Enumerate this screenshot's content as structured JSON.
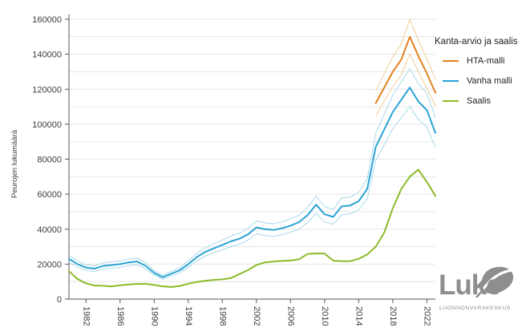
{
  "chart_data": {
    "type": "line",
    "title": "",
    "xlabel": "",
    "ylabel": "Peurojen lukumäärä",
    "ylim": [
      0,
      160000
    ],
    "yticks": [
      0,
      20000,
      40000,
      60000,
      80000,
      100000,
      120000,
      140000,
      160000
    ],
    "gridline_step": 10000,
    "grid": true,
    "legend_title": "Kanta-arvio ja saalis",
    "legend_position": "right",
    "x": [
      1980,
      1981,
      1982,
      1983,
      1984,
      1985,
      1986,
      1987,
      1988,
      1989,
      1990,
      1991,
      1992,
      1993,
      1994,
      1995,
      1996,
      1997,
      1998,
      1999,
      2000,
      2001,
      2002,
      2003,
      2004,
      2005,
      2006,
      2007,
      2008,
      2009,
      2010,
      2011,
      2012,
      2013,
      2014,
      2015,
      2016,
      2017,
      2018,
      2019,
      2020,
      2021,
      2022,
      2023
    ],
    "xticks": [
      1982,
      1986,
      1990,
      1994,
      1998,
      2002,
      2006,
      2010,
      2014,
      2018,
      2022
    ],
    "colors": {
      "grid": "#e6e6e6",
      "axis": "#555555",
      "text": "#3d3d3d"
    },
    "series": [
      {
        "name": "HTA-malli",
        "color": "#e2821e",
        "band_color": "#f3cd96",
        "start_year": 2016,
        "values": [
          112000,
          121000,
          130000,
          137000,
          150000,
          139000,
          129000,
          118000
        ],
        "ci_upper": [
          119300,
          128900,
          138500,
          145900,
          159800,
          148000,
          137400,
          125700
        ],
        "ci_lower": [
          104700,
          113100,
          121600,
          128100,
          140300,
          130000,
          120600,
          110300
        ]
      },
      {
        "name": "Vanha malli",
        "color": "#2ba3d4",
        "band_color": "#a9d9ec",
        "start_year": 1980,
        "values": [
          23000,
          20000,
          18000,
          17400,
          19000,
          19500,
          20000,
          21000,
          21500,
          19000,
          15000,
          12500,
          14500,
          16500,
          20000,
          24000,
          27000,
          29000,
          31000,
          33000,
          34500,
          37000,
          41000,
          40000,
          39500,
          40500,
          42000,
          44000,
          48000,
          54000,
          48500,
          47000,
          53000,
          53500,
          56000,
          63000,
          87000,
          97000,
          107000,
          114000,
          121000,
          113000,
          108000,
          95000
        ],
        "ci_upper": [
          25100,
          21800,
          19600,
          19000,
          20700,
          21300,
          21800,
          22900,
          23400,
          20700,
          16400,
          13600,
          15800,
          18000,
          21800,
          26200,
          29400,
          31600,
          33800,
          36000,
          37600,
          40300,
          44700,
          43600,
          43100,
          44100,
          45800,
          48000,
          52300,
          58900,
          52900,
          51200,
          57800,
          58300,
          61000,
          68700,
          94800,
          105700,
          116600,
          124300,
          131900,
          123200,
          117700,
          103600
        ],
        "ci_lower": [
          20900,
          18200,
          16400,
          15800,
          17300,
          17700,
          18200,
          19100,
          19600,
          17300,
          13700,
          11400,
          13200,
          15000,
          18200,
          21800,
          24600,
          26400,
          28200,
          30000,
          31400,
          33700,
          37300,
          36400,
          35900,
          36900,
          38200,
          40000,
          43700,
          49100,
          44100,
          42800,
          48200,
          48700,
          51000,
          57300,
          79200,
          88300,
          97400,
          103700,
          110100,
          102800,
          98300,
          86500
        ]
      },
      {
        "name": "Saalis",
        "color": "#8cbb2a",
        "start_year": 1980,
        "values": [
          16000,
          11500,
          9000,
          7800,
          7600,
          7300,
          7900,
          8400,
          8700,
          8700,
          8100,
          7300,
          6900,
          7500,
          8800,
          9800,
          10500,
          11000,
          11300,
          12000,
          14300,
          16600,
          19500,
          21000,
          21500,
          21800,
          22000,
          22800,
          25800,
          26100,
          26100,
          22000,
          21700,
          21700,
          23000,
          25500,
          30000,
          38000,
          52000,
          63000,
          70000,
          74000,
          67000,
          59000
        ]
      }
    ]
  },
  "branding": {
    "logo_text": "Luke",
    "logo_subtext": "LUONNONVARAKESKUS",
    "logo_color": "#8e8e8e"
  }
}
